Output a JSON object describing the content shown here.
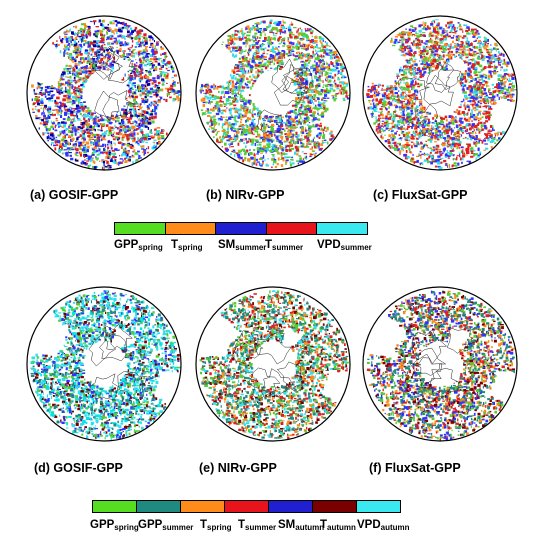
{
  "panels": [
    {
      "caption": "(a) GOSIF-GPP",
      "scheme": "top",
      "palette": [
        "#3333ff",
        "#e02020",
        "#33ddee",
        "#55cc33",
        "#ff8c1a",
        "#0000aa"
      ]
    },
    {
      "caption": "(b) NIRv-GPP",
      "scheme": "top",
      "palette": [
        "#55cc33",
        "#3333ff",
        "#33ddee",
        "#e02020",
        "#ff8c1a"
      ]
    },
    {
      "caption": "(c) FluxSat-GPP",
      "scheme": "top",
      "palette": [
        "#e02020",
        "#3333ff",
        "#55cc33",
        "#33ddee",
        "#ff8c1a"
      ]
    },
    {
      "caption": "(d) GOSIF-GPP",
      "scheme": "bottom",
      "palette": [
        "#33ddee",
        "#00e5e5",
        "#1f8a80",
        "#55cc33",
        "#7a0000",
        "#3333ff"
      ]
    },
    {
      "caption": "(e) NIRv-GPP",
      "scheme": "bottom",
      "palette": [
        "#1f8a80",
        "#55cc33",
        "#33ddee",
        "#e02020",
        "#7a0000",
        "#ff8c1a"
      ]
    },
    {
      "caption": "(f) FluxSat-GPP",
      "scheme": "bottom",
      "palette": [
        "#1f8a80",
        "#3333ff",
        "#55cc33",
        "#ff8c1a",
        "#e02020",
        "#7a0000"
      ]
    }
  ],
  "legend_top": {
    "items": [
      {
        "base": "GPP",
        "sub": "spring",
        "color": "#55dd22"
      },
      {
        "base": "T",
        "sub": "spring",
        "color": "#ff8c1a"
      },
      {
        "base": "SM",
        "sub": "summer",
        "color": "#2020d0"
      },
      {
        "base": "T",
        "sub": "summer",
        "color": "#e8141c"
      },
      {
        "base": "VPD",
        "sub": "summer",
        "color": "#3ae8f0"
      }
    ]
  },
  "legend_bottom": {
    "items": [
      {
        "base": "GPP",
        "sub": "spring",
        "color": "#55dd22"
      },
      {
        "base": "GPP",
        "sub": "summer",
        "color": "#1f8a80"
      },
      {
        "base": "T",
        "sub": "spring",
        "color": "#ff8c1a"
      },
      {
        "base": "T",
        "sub": "summer",
        "color": "#e8141c"
      },
      {
        "base": "SM",
        "sub": "autumn",
        "color": "#2020d0"
      },
      {
        "base": "T",
        "sub": "autumn",
        "color": "#7a0000"
      },
      {
        "base": "VPD",
        "sub": "autumn",
        "color": "#3ae8f0"
      }
    ]
  }
}
